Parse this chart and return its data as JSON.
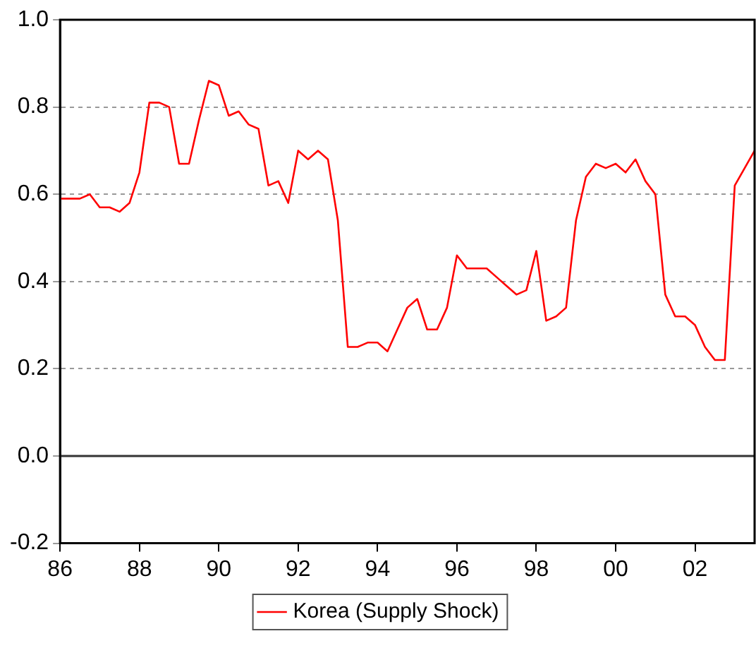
{
  "chart_data": {
    "type": "line",
    "x": [
      1986,
      1986.25,
      1986.5,
      1986.75,
      1987,
      1987.25,
      1987.5,
      1987.75,
      1988,
      1988.25,
      1988.5,
      1988.75,
      1989,
      1989.25,
      1989.5,
      1989.75,
      1990,
      1990.25,
      1990.5,
      1990.75,
      1991,
      1991.25,
      1991.5,
      1991.75,
      1992,
      1992.25,
      1992.5,
      1992.75,
      1993,
      1993.25,
      1993.5,
      1993.75,
      1994,
      1994.25,
      1994.5,
      1994.75,
      1995,
      1995.25,
      1995.5,
      1995.75,
      1996,
      1996.25,
      1996.5,
      1996.75,
      1997,
      1997.25,
      1997.5,
      1997.75,
      1998,
      1998.25,
      1998.5,
      1998.75,
      1999,
      1999.25,
      1999.5,
      1999.75,
      2000,
      2000.25,
      2000.5,
      2000.75,
      2001,
      2001.25,
      2001.5,
      2001.75,
      2002,
      2002.25,
      2002.5,
      2002.75,
      2003,
      2003.25,
      2003.5
    ],
    "series": [
      {
        "name": "Korea (Supply Shock)",
        "color": "#ff0000",
        "values": [
          0.59,
          0.59,
          0.59,
          0.6,
          0.57,
          0.57,
          0.56,
          0.58,
          0.65,
          0.81,
          0.81,
          0.8,
          0.67,
          0.67,
          0.77,
          0.86,
          0.85,
          0.78,
          0.79,
          0.76,
          0.75,
          0.62,
          0.63,
          0.58,
          0.7,
          0.68,
          0.7,
          0.68,
          0.54,
          0.25,
          0.25,
          0.26,
          0.26,
          0.24,
          0.29,
          0.34,
          0.36,
          0.29,
          0.29,
          0.34,
          0.46,
          0.43,
          0.43,
          0.43,
          0.41,
          0.39,
          0.37,
          0.38,
          0.47,
          0.31,
          0.32,
          0.34,
          0.54,
          0.64,
          0.67,
          0.66,
          0.67,
          0.65,
          0.68,
          0.63,
          0.6,
          0.37,
          0.32,
          0.32,
          0.3,
          0.25,
          0.22,
          0.22,
          0.62,
          0.66,
          0.7
        ]
      }
    ],
    "xlim": [
      1986,
      2003.5
    ],
    "xticks": [
      {
        "value": 1986,
        "label": "86"
      },
      {
        "value": 1988,
        "label": "88"
      },
      {
        "value": 1990,
        "label": "90"
      },
      {
        "value": 1992,
        "label": "92"
      },
      {
        "value": 1994,
        "label": "94"
      },
      {
        "value": 1996,
        "label": "96"
      },
      {
        "value": 1998,
        "label": "98"
      },
      {
        "value": 2000,
        "label": "00"
      },
      {
        "value": 2002,
        "label": "02"
      }
    ],
    "ylim": [
      -0.2,
      1.0
    ],
    "yticks": [
      {
        "value": -0.2,
        "label": "-0.2"
      },
      {
        "value": 0,
        "label": "0.0"
      },
      {
        "value": 0.2,
        "label": "0.2"
      },
      {
        "value": 0.4,
        "label": "0.4"
      },
      {
        "value": 0.6,
        "label": "0.6"
      },
      {
        "value": 0.8,
        "label": "0.8"
      },
      {
        "value": 1.0,
        "label": "1.0"
      }
    ],
    "ref_lines": [
      {
        "axis": "y",
        "value": 0,
        "color": "#333333",
        "line_style": "solid"
      }
    ],
    "grid": "y",
    "legend": "bottom",
    "marker": "none",
    "line_style": "solid"
  }
}
